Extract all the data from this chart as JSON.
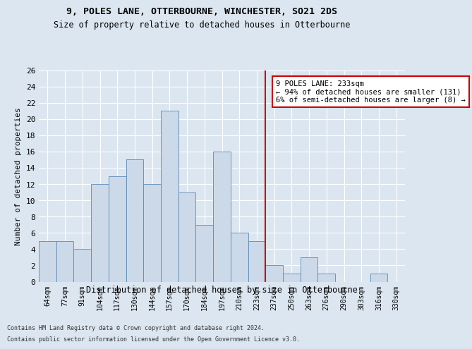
{
  "title1": "9, POLES LANE, OTTERBOURNE, WINCHESTER, SO21 2DS",
  "title2": "Size of property relative to detached houses in Otterbourne",
  "xlabel": "Distribution of detached houses by size in Otterbourne",
  "ylabel": "Number of detached properties",
  "categories": [
    "64sqm",
    "77sqm",
    "91sqm",
    "104sqm",
    "117sqm",
    "130sqm",
    "144sqm",
    "157sqm",
    "170sqm",
    "184sqm",
    "197sqm",
    "210sqm",
    "223sqm",
    "237sqm",
    "250sqm",
    "263sqm",
    "276sqm",
    "290sqm",
    "303sqm",
    "316sqm",
    "330sqm"
  ],
  "values": [
    5,
    5,
    4,
    12,
    13,
    15,
    12,
    21,
    11,
    7,
    16,
    6,
    5,
    2,
    1,
    3,
    1,
    0,
    0,
    1,
    0
  ],
  "bar_color": "#ccd9e8",
  "bar_edge_color": "#5a8ab5",
  "vline_color": "#cc0000",
  "annotation_title": "9 POLES LANE: 233sqm",
  "annotation_line1": "← 94% of detached houses are smaller (131)",
  "annotation_line2": "6% of semi-detached houses are larger (8) →",
  "annotation_box_color": "#cc0000",
  "ylim": [
    0,
    26
  ],
  "yticks": [
    0,
    2,
    4,
    6,
    8,
    10,
    12,
    14,
    16,
    18,
    20,
    22,
    24,
    26
  ],
  "footer1": "Contains HM Land Registry data © Crown copyright and database right 2024.",
  "footer2": "Contains public sector information licensed under the Open Government Licence v3.0.",
  "bg_color": "#dce6f0",
  "plot_bg_color": "#dce6f0"
}
